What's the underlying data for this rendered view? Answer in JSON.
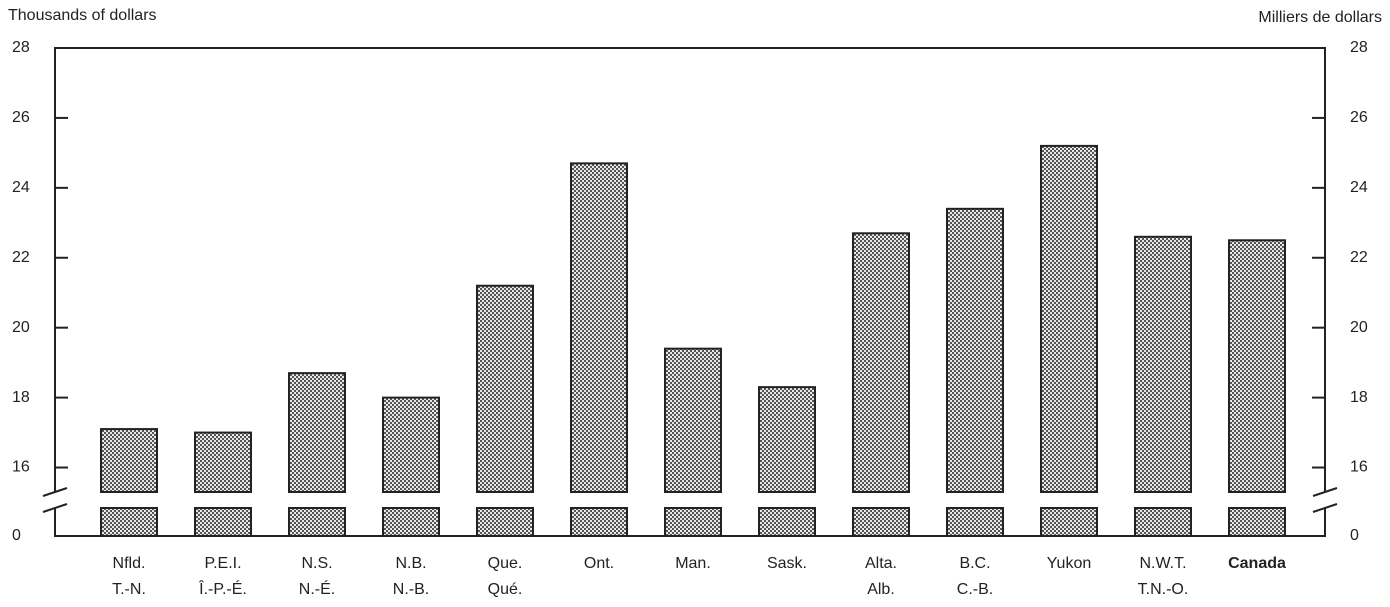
{
  "chart_data": {
    "type": "bar",
    "y_label": "Thousands of dollars",
    "y2_label": "Milliers de dollars",
    "categories": [
      [
        "Nfld.",
        "T.-N."
      ],
      [
        "P.E.I.",
        "Î.-P.-É."
      ],
      [
        "N.S.",
        "N.-É."
      ],
      [
        "N.B.",
        "N.-B."
      ],
      [
        "Que.",
        "Qué."
      ],
      [
        "Ont."
      ],
      [
        "Man."
      ],
      [
        "Sask."
      ],
      [
        "Alta.",
        "Alb."
      ],
      [
        "B.C.",
        "C.-B."
      ],
      [
        "Yukon"
      ],
      [
        "N.W.T.",
        "T.N.-O."
      ],
      [
        "Canada"
      ]
    ],
    "values": [
      17.1,
      17.0,
      18.7,
      18.0,
      21.2,
      24.7,
      19.4,
      18.3,
      22.7,
      23.4,
      25.2,
      22.6,
      22.5
    ],
    "color": "#8a8a8a",
    "ylim": [
      15.3,
      28
    ],
    "yticks": [
      0,
      16,
      18,
      20,
      22,
      24,
      26,
      28
    ],
    "y2lim": [
      15.3,
      28
    ],
    "y2ticks": [
      0,
      16,
      18,
      20,
      22,
      24,
      26,
      28
    ],
    "axis_break": true,
    "grid": false
  }
}
